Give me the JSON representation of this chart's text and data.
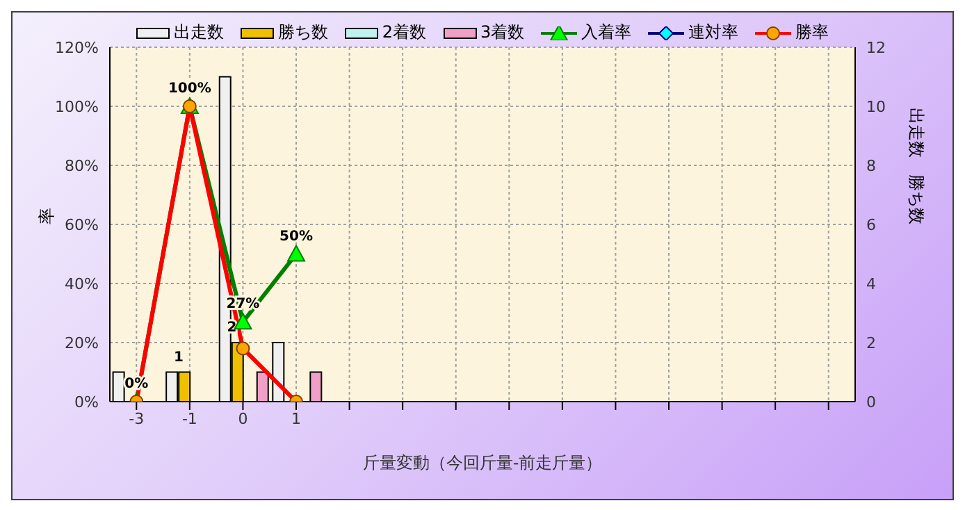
{
  "chart_data": {
    "type": "bar",
    "xlabel": "斤量変動（今回斤量-前走斤量）",
    "ylabel": "率",
    "y2label": "出走数　勝ち数",
    "categories": [
      "-3",
      "-1",
      "0",
      "1",
      null,
      null,
      null,
      null,
      null,
      null,
      null,
      null,
      null,
      null
    ],
    "series": [
      {
        "name": "出走数",
        "axis": "y2",
        "color": "#f0f0f0",
        "values": [
          1,
          1,
          11,
          2,
          null,
          null,
          null,
          null,
          null,
          null,
          null,
          null,
          null,
          null
        ]
      },
      {
        "name": "勝ち数",
        "axis": "y2",
        "color": "#f0c000",
        "values": [
          0,
          1,
          2,
          0,
          null,
          null,
          null,
          null,
          null,
          null,
          null,
          null,
          null,
          null
        ],
        "value_labels": [
          null,
          "1",
          "2",
          null,
          null,
          null,
          null,
          null,
          null,
          null,
          null,
          null,
          null,
          null
        ]
      },
      {
        "name": "2着数",
        "axis": "y2",
        "color": "#c0f0f0",
        "values": [
          0,
          0,
          0,
          0,
          null,
          null,
          null,
          null,
          null,
          null,
          null,
          null,
          null,
          null
        ]
      },
      {
        "name": "3着数",
        "axis": "y2",
        "color": "#f0a0c8",
        "values": [
          0,
          0,
          1,
          1,
          null,
          null,
          null,
          null,
          null,
          null,
          null,
          null,
          null,
          null
        ]
      },
      {
        "name": "入着率",
        "type": "line",
        "axis": "y",
        "color": "#008000",
        "marker": "triangle",
        "values": [
          0,
          100,
          27,
          50,
          null,
          null,
          null,
          null,
          null,
          null,
          null,
          null,
          null,
          null
        ],
        "value_labels": [
          "0%",
          "100%",
          "27%",
          "50%",
          null,
          null,
          null,
          null,
          null,
          null,
          null,
          null,
          null,
          null
        ]
      },
      {
        "name": "連対率",
        "type": "line",
        "axis": "y",
        "color": "#000080",
        "marker": "diamond",
        "values": [
          null,
          null,
          null,
          null,
          null,
          null,
          null,
          null,
          null,
          null,
          null,
          null,
          null,
          null
        ]
      },
      {
        "name": "勝率",
        "type": "line",
        "axis": "y",
        "color": "#ff0000",
        "marker": "circle",
        "values": [
          0,
          100,
          18,
          0,
          null,
          null,
          null,
          null,
          null,
          null,
          null,
          null,
          null,
          null
        ]
      }
    ],
    "ylim": [
      0,
      120
    ],
    "yticks": [
      {
        "value": 0,
        "label": "0%"
      },
      {
        "value": 20,
        "label": "20%"
      },
      {
        "value": 40,
        "label": "40%"
      },
      {
        "value": 60,
        "label": "60%"
      },
      {
        "value": 80,
        "label": "80%"
      },
      {
        "value": 100,
        "label": "100%"
      },
      {
        "value": 120,
        "label": "120%"
      }
    ],
    "y2lim": [
      0,
      12
    ],
    "y2ticks": [
      0,
      2,
      4,
      6,
      8,
      10,
      12
    ],
    "grid": true,
    "legend": "top"
  }
}
